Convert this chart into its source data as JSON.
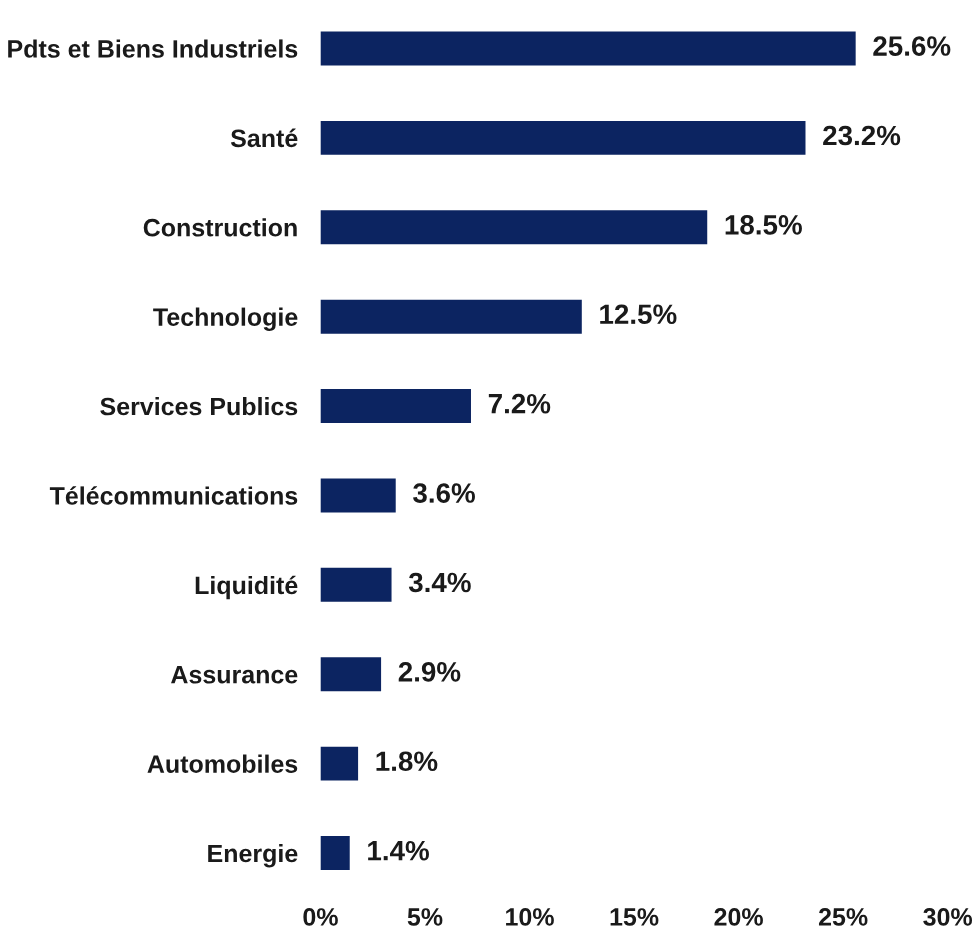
{
  "chart_data": {
    "type": "bar",
    "orientation": "horizontal",
    "categories": [
      "Pdts et Biens Industriels",
      "Santé",
      "Construction",
      "Technologie",
      "Services Publics",
      "Télécommunications",
      "Liquidité",
      "Assurance",
      "Automobiles",
      "Energie"
    ],
    "values": [
      25.6,
      23.2,
      18.5,
      12.5,
      7.2,
      3.6,
      3.4,
      2.9,
      1.8,
      1.4
    ],
    "value_labels": [
      "25.6%",
      "23.2%",
      "18.5%",
      "12.5%",
      "7.2%",
      "3.6%",
      "3.4%",
      "2.9%",
      "1.8%",
      "1.4%"
    ],
    "color": "#0c2461",
    "xlim": [
      0,
      30
    ],
    "xticks": [
      {
        "value": 0,
        "label": "0%"
      },
      {
        "value": 5,
        "label": "5%"
      },
      {
        "value": 10,
        "label": "10%"
      },
      {
        "value": 15,
        "label": "15%"
      },
      {
        "value": 20,
        "label": "20%"
      },
      {
        "value": 25,
        "label": "25%"
      },
      {
        "value": 30,
        "label": "30%"
      }
    ],
    "grid": false,
    "legend": false
  }
}
